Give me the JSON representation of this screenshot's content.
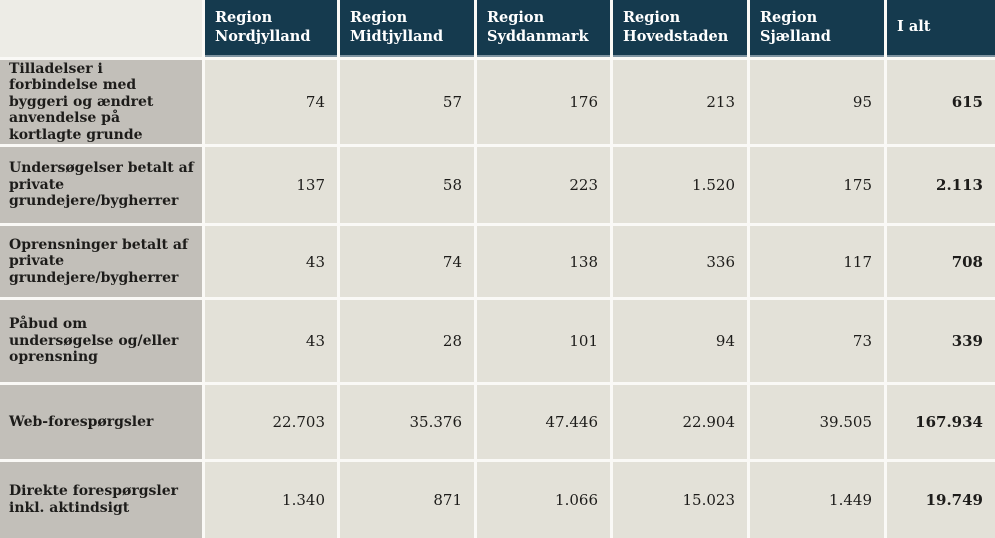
{
  "table": {
    "columns": [
      "Region Nordjylland",
      "Region Midtjylland",
      "Region Syddanmark",
      "Region Hovedstaden",
      "Region Sjælland",
      "I alt"
    ],
    "rows": [
      {
        "label": "Tilladelser i forbindelse med byggeri og ændret anvendelse på kortlagte grunde",
        "values": [
          "74",
          "57",
          "176",
          "213",
          "95",
          "615"
        ]
      },
      {
        "label": "Undersøgelser betalt af private grundejere/bygherrer",
        "values": [
          "137",
          "58",
          "223",
          "1.520",
          "175",
          "2.113"
        ]
      },
      {
        "label": "Oprensninger betalt af private grundejere/bygherrer",
        "values": [
          "43",
          "74",
          "138",
          "336",
          "117",
          "708"
        ]
      },
      {
        "label": "Påbud om undersøgelse og/eller oprensning",
        "values": [
          "43",
          "28",
          "101",
          "94",
          "73",
          "339"
        ]
      },
      {
        "label": "Web-forespørgsler",
        "values": [
          "22.703",
          "35.376",
          "47.446",
          "22.904",
          "39.505",
          "167.934"
        ]
      },
      {
        "label": "Direkte forespørgsler inkl. aktindsigt",
        "values": [
          "1.340",
          "871",
          "1.066",
          "15.023",
          "1.449",
          "19.749"
        ]
      }
    ],
    "colors": {
      "header_bg": "#153a4e",
      "header_border_bottom": "#7e93a0",
      "header_text": "#ffffff",
      "row_label_bg": "#c2bfb9",
      "cell_bg": "#e3e1d8",
      "corner_bg": "#edece6",
      "gap": "#faf9f6",
      "text": "#1d1c1a"
    }
  },
  "chart_data": {
    "type": "table",
    "columns": [
      "",
      "Region Nordjylland",
      "Region Midtjylland",
      "Region Syddanmark",
      "Region Hovedstaden",
      "Region Sjælland",
      "I alt"
    ],
    "rows": [
      [
        "Tilladelser i forbindelse med byggeri og ændret anvendelse på kortlagte grunde",
        74,
        57,
        176,
        213,
        95,
        615
      ],
      [
        "Undersøgelser betalt af private grundejere/bygherrer",
        137,
        58,
        223,
        1520,
        175,
        2113
      ],
      [
        "Oprensninger betalt af private grundejere/bygherrer",
        43,
        74,
        138,
        336,
        117,
        708
      ],
      [
        "Påbud om undersøgelse og/eller oprensning",
        43,
        28,
        101,
        94,
        73,
        339
      ],
      [
        "Web-forespørgsler",
        22703,
        35376,
        47446,
        22904,
        39505,
        167934
      ],
      [
        "Direkte forespørgsler inkl. aktindsigt",
        1340,
        871,
        1066,
        15023,
        1449,
        19749
      ]
    ],
    "number_format": "da-DK (period as thousands separator)",
    "notes": "Last column (I alt) holds row totals rendered in bold"
  }
}
